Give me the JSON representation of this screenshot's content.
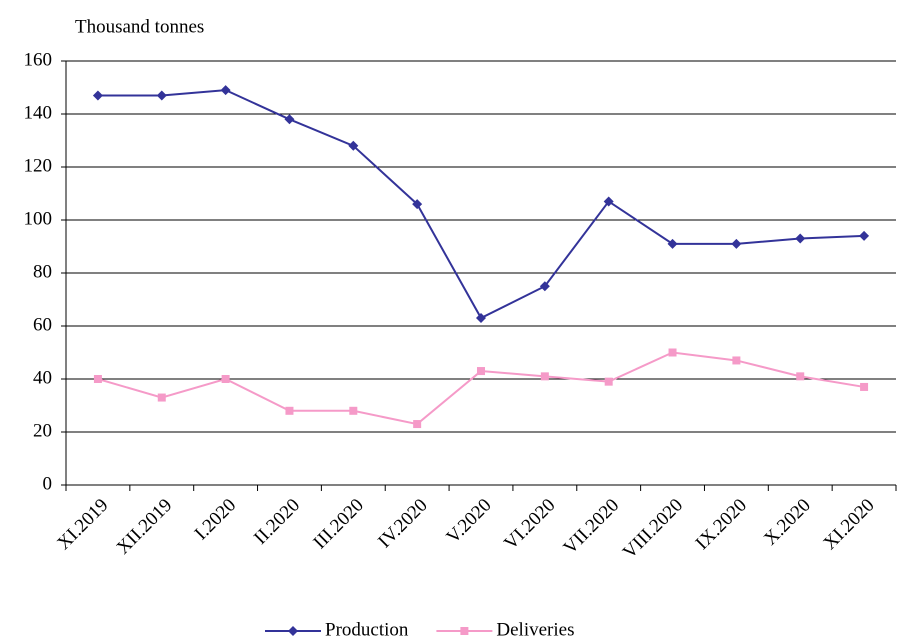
{
  "chart_data": {
    "type": "line",
    "y_axis_label": "Thousand tonnes",
    "categories": [
      "XI.2019",
      "XII.2019",
      "I.2020",
      "II.2020",
      "III.2020",
      "IV.2020",
      "V.2020",
      "VI.2020",
      "VII.2020",
      "VIII.2020",
      "IX.2020",
      "X.2020",
      "XI.2020"
    ],
    "series": [
      {
        "name": "Production",
        "color": "#333399",
        "marker": "diamond",
        "values": [
          147,
          147,
          149,
          138,
          128,
          106,
          63,
          75,
          107,
          91,
          91,
          93,
          94
        ]
      },
      {
        "name": "Deliveries",
        "color": "#f59ac8",
        "marker": "square",
        "values": [
          40,
          33,
          40,
          28,
          28,
          23,
          43,
          41,
          39,
          50,
          47,
          41,
          37
        ]
      }
    ],
    "ylim": [
      0,
      160
    ],
    "yticks": [
      0,
      20,
      40,
      60,
      80,
      100,
      120,
      140,
      160
    ],
    "grid": true,
    "legend": "bottom"
  }
}
